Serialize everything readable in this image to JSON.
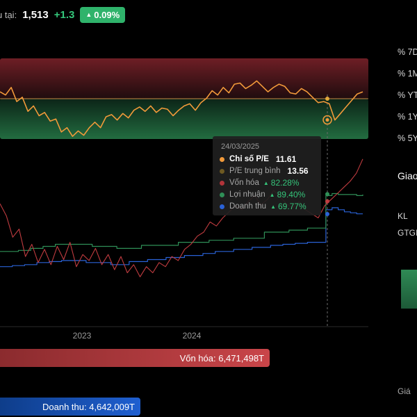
{
  "header": {
    "price_label": "u tại:",
    "price": "1,513",
    "change": "+1.3",
    "change_pct": "0.09%"
  },
  "right_panel": {
    "periods": [
      "% 7D",
      "% 1M",
      "% YT",
      "% 1Y",
      "% 5Y"
    ],
    "section_title": "Giao",
    "kl_label": "KL",
    "gtg_label": "GTGI",
    "gia_label": "Giá"
  },
  "bottom_bars": {
    "vonhoa": "Vốn hóa: 6,471,498T",
    "doanhthu": "Doanh thu: 4,642,009T"
  },
  "tooltip": {
    "date": "24/03/2025",
    "rows": [
      {
        "label": "Chỉ số P/E",
        "value": "11.61",
        "color": "#f29a3a"
      },
      {
        "label": "P/E trung bình",
        "value": "13.56",
        "color": "#6e5a22"
      },
      {
        "label": "Vốn hóa",
        "pct": "82.28%",
        "color": "#b2343a"
      },
      {
        "label": "Lợi nhuận",
        "pct": "89.40%",
        "color": "#2f8f57"
      },
      {
        "label": "Doanh thu",
        "pct": "69.77%",
        "color": "#2a62d6"
      }
    ]
  },
  "chart_data": {
    "type": "line",
    "x_ticks": [
      "2023",
      "2024"
    ],
    "pe_band": {
      "upper": 16.4,
      "lower": 10.6,
      "mid": 13.56
    },
    "pe_range": [
      9.6,
      17.4
    ],
    "pe_series": [
      14.2,
      13.9,
      14.6,
      13.3,
      13.7,
      12.4,
      12.9,
      12.0,
      12.3,
      11.5,
      11.7,
      10.5,
      10.9,
      10.1,
      10.6,
      10.2,
      10.9,
      11.4,
      10.9,
      11.9,
      12.1,
      11.6,
      12.2,
      11.8,
      12.5,
      12.8,
      12.4,
      12.9,
      12.3,
      12.7,
      12.6,
      12.0,
      12.5,
      12.9,
      13.1,
      12.5,
      13.2,
      13.6,
      14.3,
      13.9,
      14.6,
      14.1,
      14.9,
      15.0,
      14.5,
      14.8,
      15.2,
      14.7,
      14.2,
      14.6,
      14.9,
      14.7,
      14.1,
      14.0,
      14.5,
      14.2,
      13.7,
      13.2,
      13.3,
      13.1,
      11.6,
      12.2,
      12.8,
      13.4,
      14.0,
      14.2
    ],
    "vonhoa_series": [
      80,
      68,
      47,
      55,
      28,
      40,
      22,
      35,
      20,
      38,
      25,
      42,
      18,
      30,
      24,
      36,
      20,
      30,
      15,
      28,
      12,
      20,
      8,
      18,
      12,
      22,
      18,
      28,
      24,
      35,
      40,
      48,
      52,
      62,
      58,
      66,
      72,
      78,
      74,
      82,
      88,
      79,
      84,
      93,
      87,
      80,
      76,
      82,
      74,
      70,
      66,
      78,
      84,
      90,
      96,
      102,
      110,
      124
    ],
    "loinhuan_series": [
      33,
      33,
      33,
      34,
      34,
      36,
      36,
      38,
      38,
      40,
      40,
      40,
      40,
      40,
      40,
      38,
      38,
      38,
      38,
      36,
      36,
      36,
      36,
      39,
      39,
      39,
      39,
      39,
      39,
      42,
      42,
      42,
      42,
      42,
      44,
      44,
      44,
      44,
      46,
      46,
      46,
      46,
      46,
      52,
      52,
      52,
      52,
      54,
      54,
      54,
      56,
      56,
      56,
      88,
      90,
      89,
      89,
      89,
      88,
      89
    ],
    "doanhthu_series": [
      18,
      18,
      19,
      19,
      20,
      20,
      22,
      22,
      23,
      23,
      24,
      24,
      24,
      24,
      22,
      22,
      22,
      22,
      20,
      20,
      20,
      23,
      23,
      23,
      25,
      25,
      25,
      27,
      27,
      27,
      29,
      29,
      29,
      31,
      31,
      33,
      33,
      33,
      35,
      35,
      35,
      37,
      37,
      37,
      39,
      39,
      40,
      40,
      41,
      41,
      42,
      42,
      42,
      74,
      76,
      74,
      72,
      71,
      70,
      70
    ],
    "growth_range": [
      0,
      130
    ]
  }
}
